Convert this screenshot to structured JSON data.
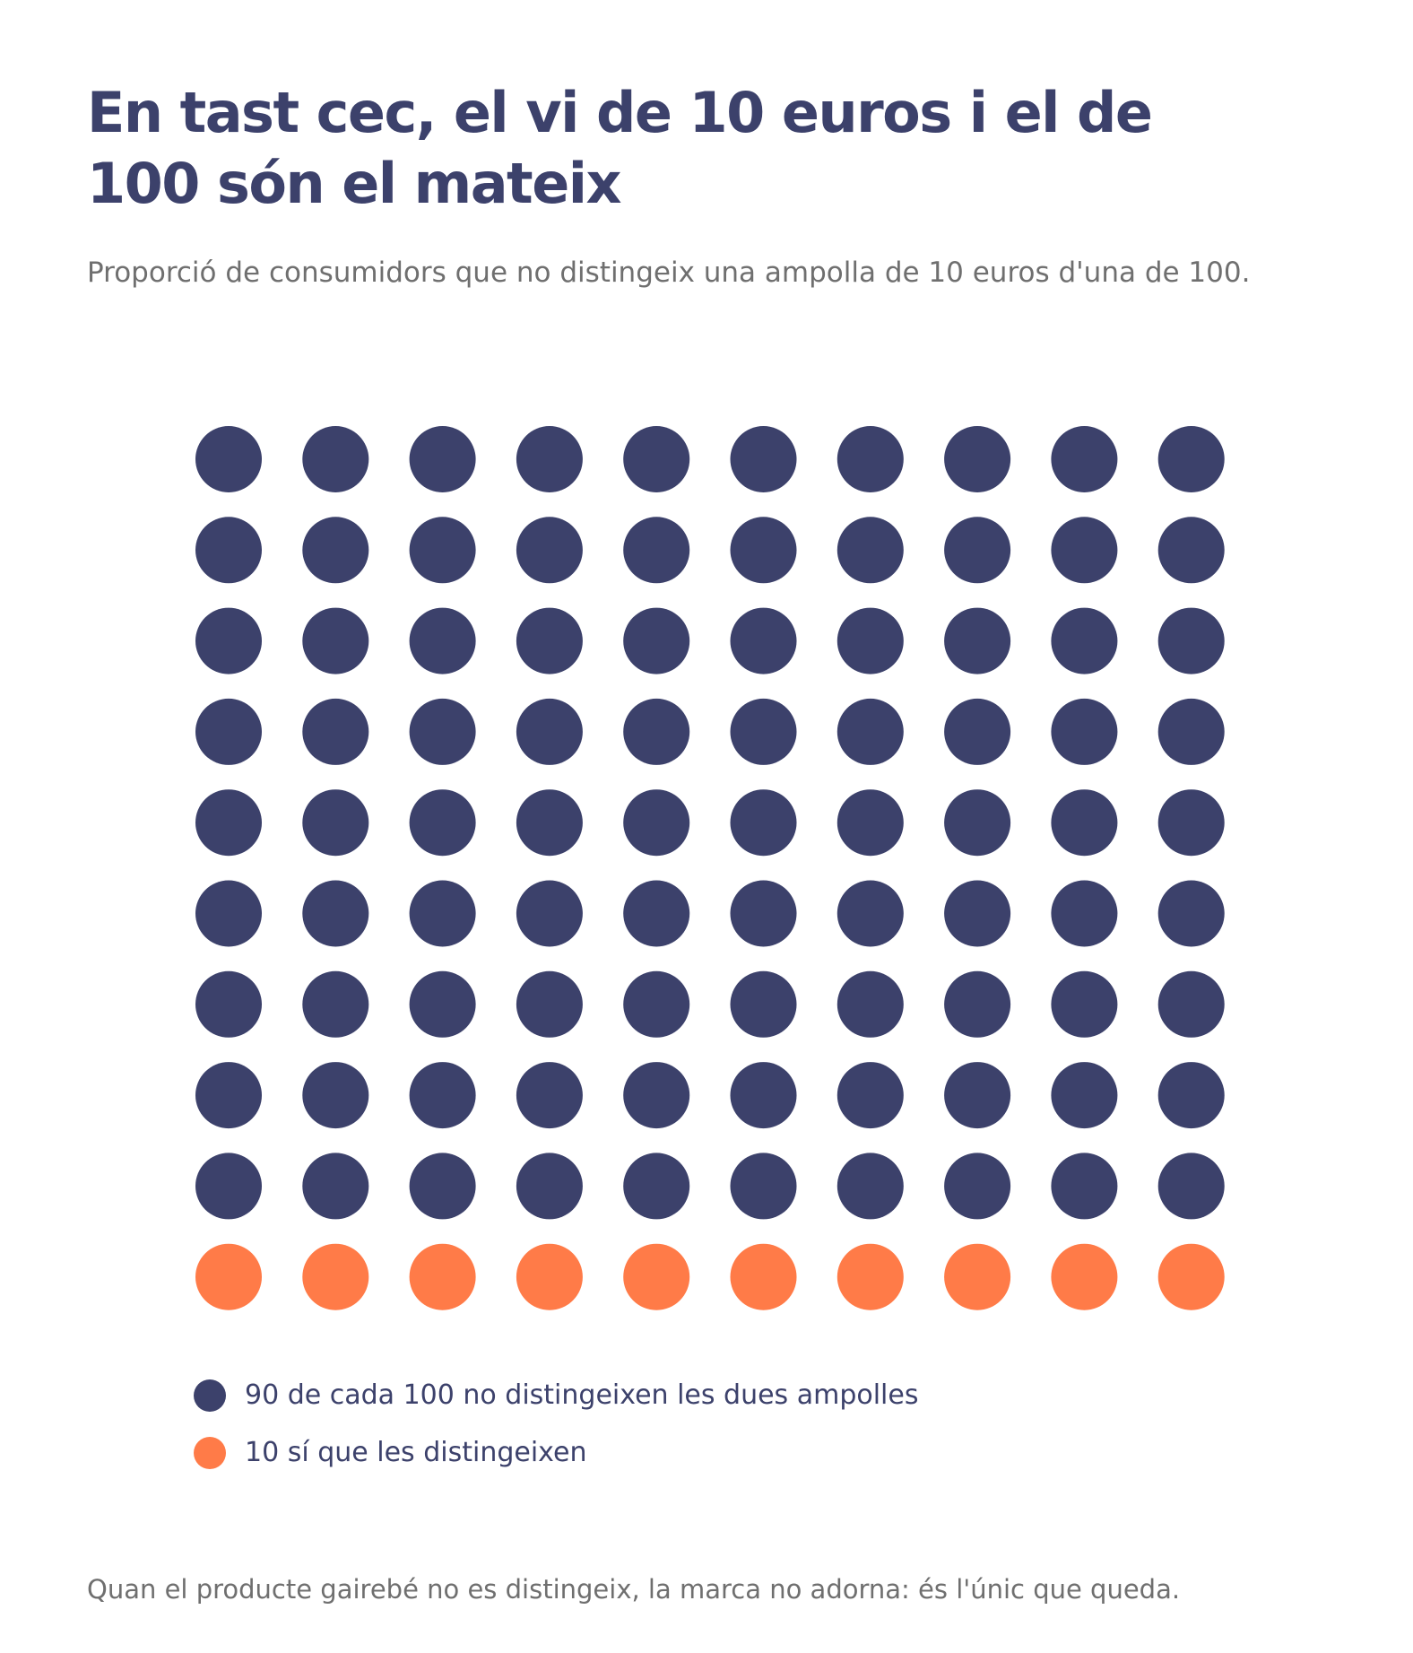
{
  "header": {
    "title": "En tast cec, el vi de 10 euros i el de 100 són el mateix",
    "subtitle": "Proporció de consumidors que no distingeix una ampolla de 10 euros d'una de 100."
  },
  "chart_data": {
    "type": "waffle",
    "total": 100,
    "grid": {
      "columns": 10,
      "rows": 10
    },
    "series": [
      {
        "value": 90,
        "color": "#3c416b",
        "label": "90 de cada 100 no distingeixen les dues ampolles"
      },
      {
        "value": 10,
        "color": "#ff7b48",
        "label": "10 sí que les distingeixen"
      }
    ]
  },
  "footnote": "Quan el producte gairebé no es distingeix, la marca no adorna: és l'únic que queda."
}
